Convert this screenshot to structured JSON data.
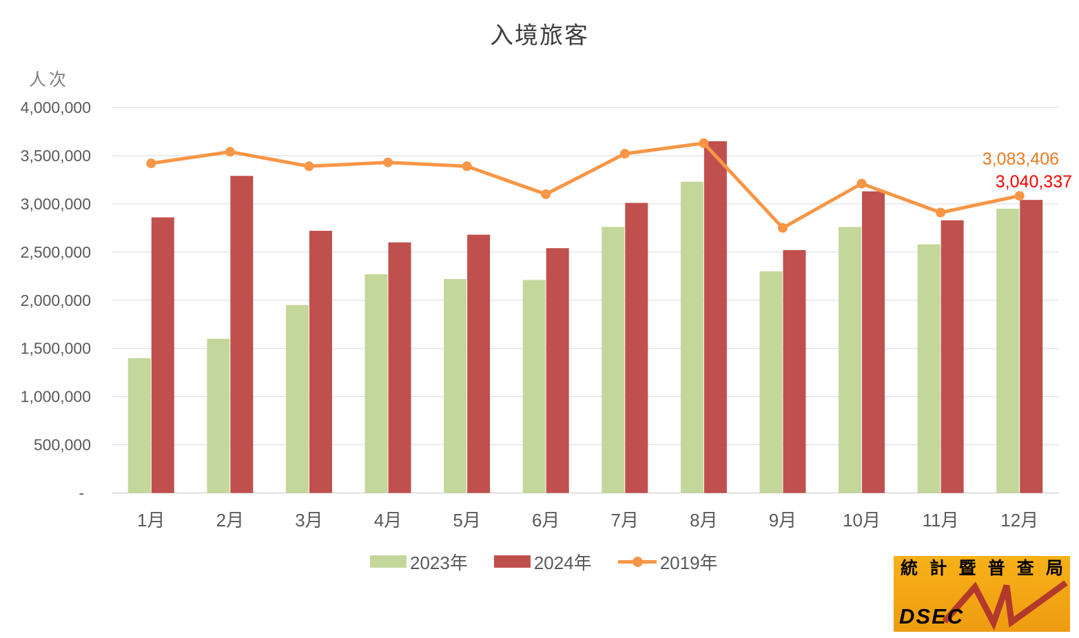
{
  "chart_data": {
    "type": "bar",
    "title": "入境旅客",
    "ylabel": "人次",
    "xlabel": "",
    "categories": [
      "1月",
      "2月",
      "3月",
      "4月",
      "5月",
      "6月",
      "7月",
      "8月",
      "9月",
      "10月",
      "11月",
      "12月"
    ],
    "series": [
      {
        "name": "2023年",
        "type": "bar",
        "color": "#C4D79B",
        "values": [
          1400000,
          1600000,
          1950000,
          2270000,
          2220000,
          2210000,
          2760000,
          3230000,
          2300000,
          2760000,
          2580000,
          2950000
        ]
      },
      {
        "name": "2024年",
        "type": "bar",
        "color": "#C0504D",
        "values": [
          2860000,
          3290000,
          2720000,
          2600000,
          2680000,
          2540000,
          3010000,
          3650000,
          2520000,
          3130000,
          2830000,
          3040337
        ]
      },
      {
        "name": "2019年",
        "type": "line",
        "color": "#F79646",
        "values": [
          3420000,
          3540000,
          3390000,
          3430000,
          3390000,
          3100000,
          3520000,
          3630000,
          2750000,
          3210000,
          2910000,
          3083406
        ]
      }
    ],
    "ylim": [
      0,
      4000000
    ],
    "ytick_step": 500000,
    "ytick_labels": [
      "-",
      "500,000",
      "1,000,000",
      "1,500,000",
      "2,000,000",
      "2,500,000",
      "3,000,000",
      "3,500,000",
      "4,000,000"
    ],
    "grid": true,
    "grid_color": "#D9D9D9",
    "axis_line_color": "#C6C6C6",
    "tick_text_color": "#595959",
    "legend_position": "bottom",
    "annotations": [
      {
        "text": "3,083,406",
        "value": 3083406,
        "series": "2019年",
        "month": "12月",
        "color": "#E87D22"
      },
      {
        "text": "3,040,337",
        "value": 3040337,
        "series": "2024年",
        "month": "12月",
        "color": "#FF0000"
      }
    ]
  },
  "logo": {
    "org_chars": [
      "統",
      "計",
      "暨",
      "普",
      "查",
      "局"
    ],
    "acronym": "DSEC",
    "bg_top": "#F8B117",
    "bg_bottom": "#EE9C12",
    "bolt_color": "#B2392B"
  }
}
